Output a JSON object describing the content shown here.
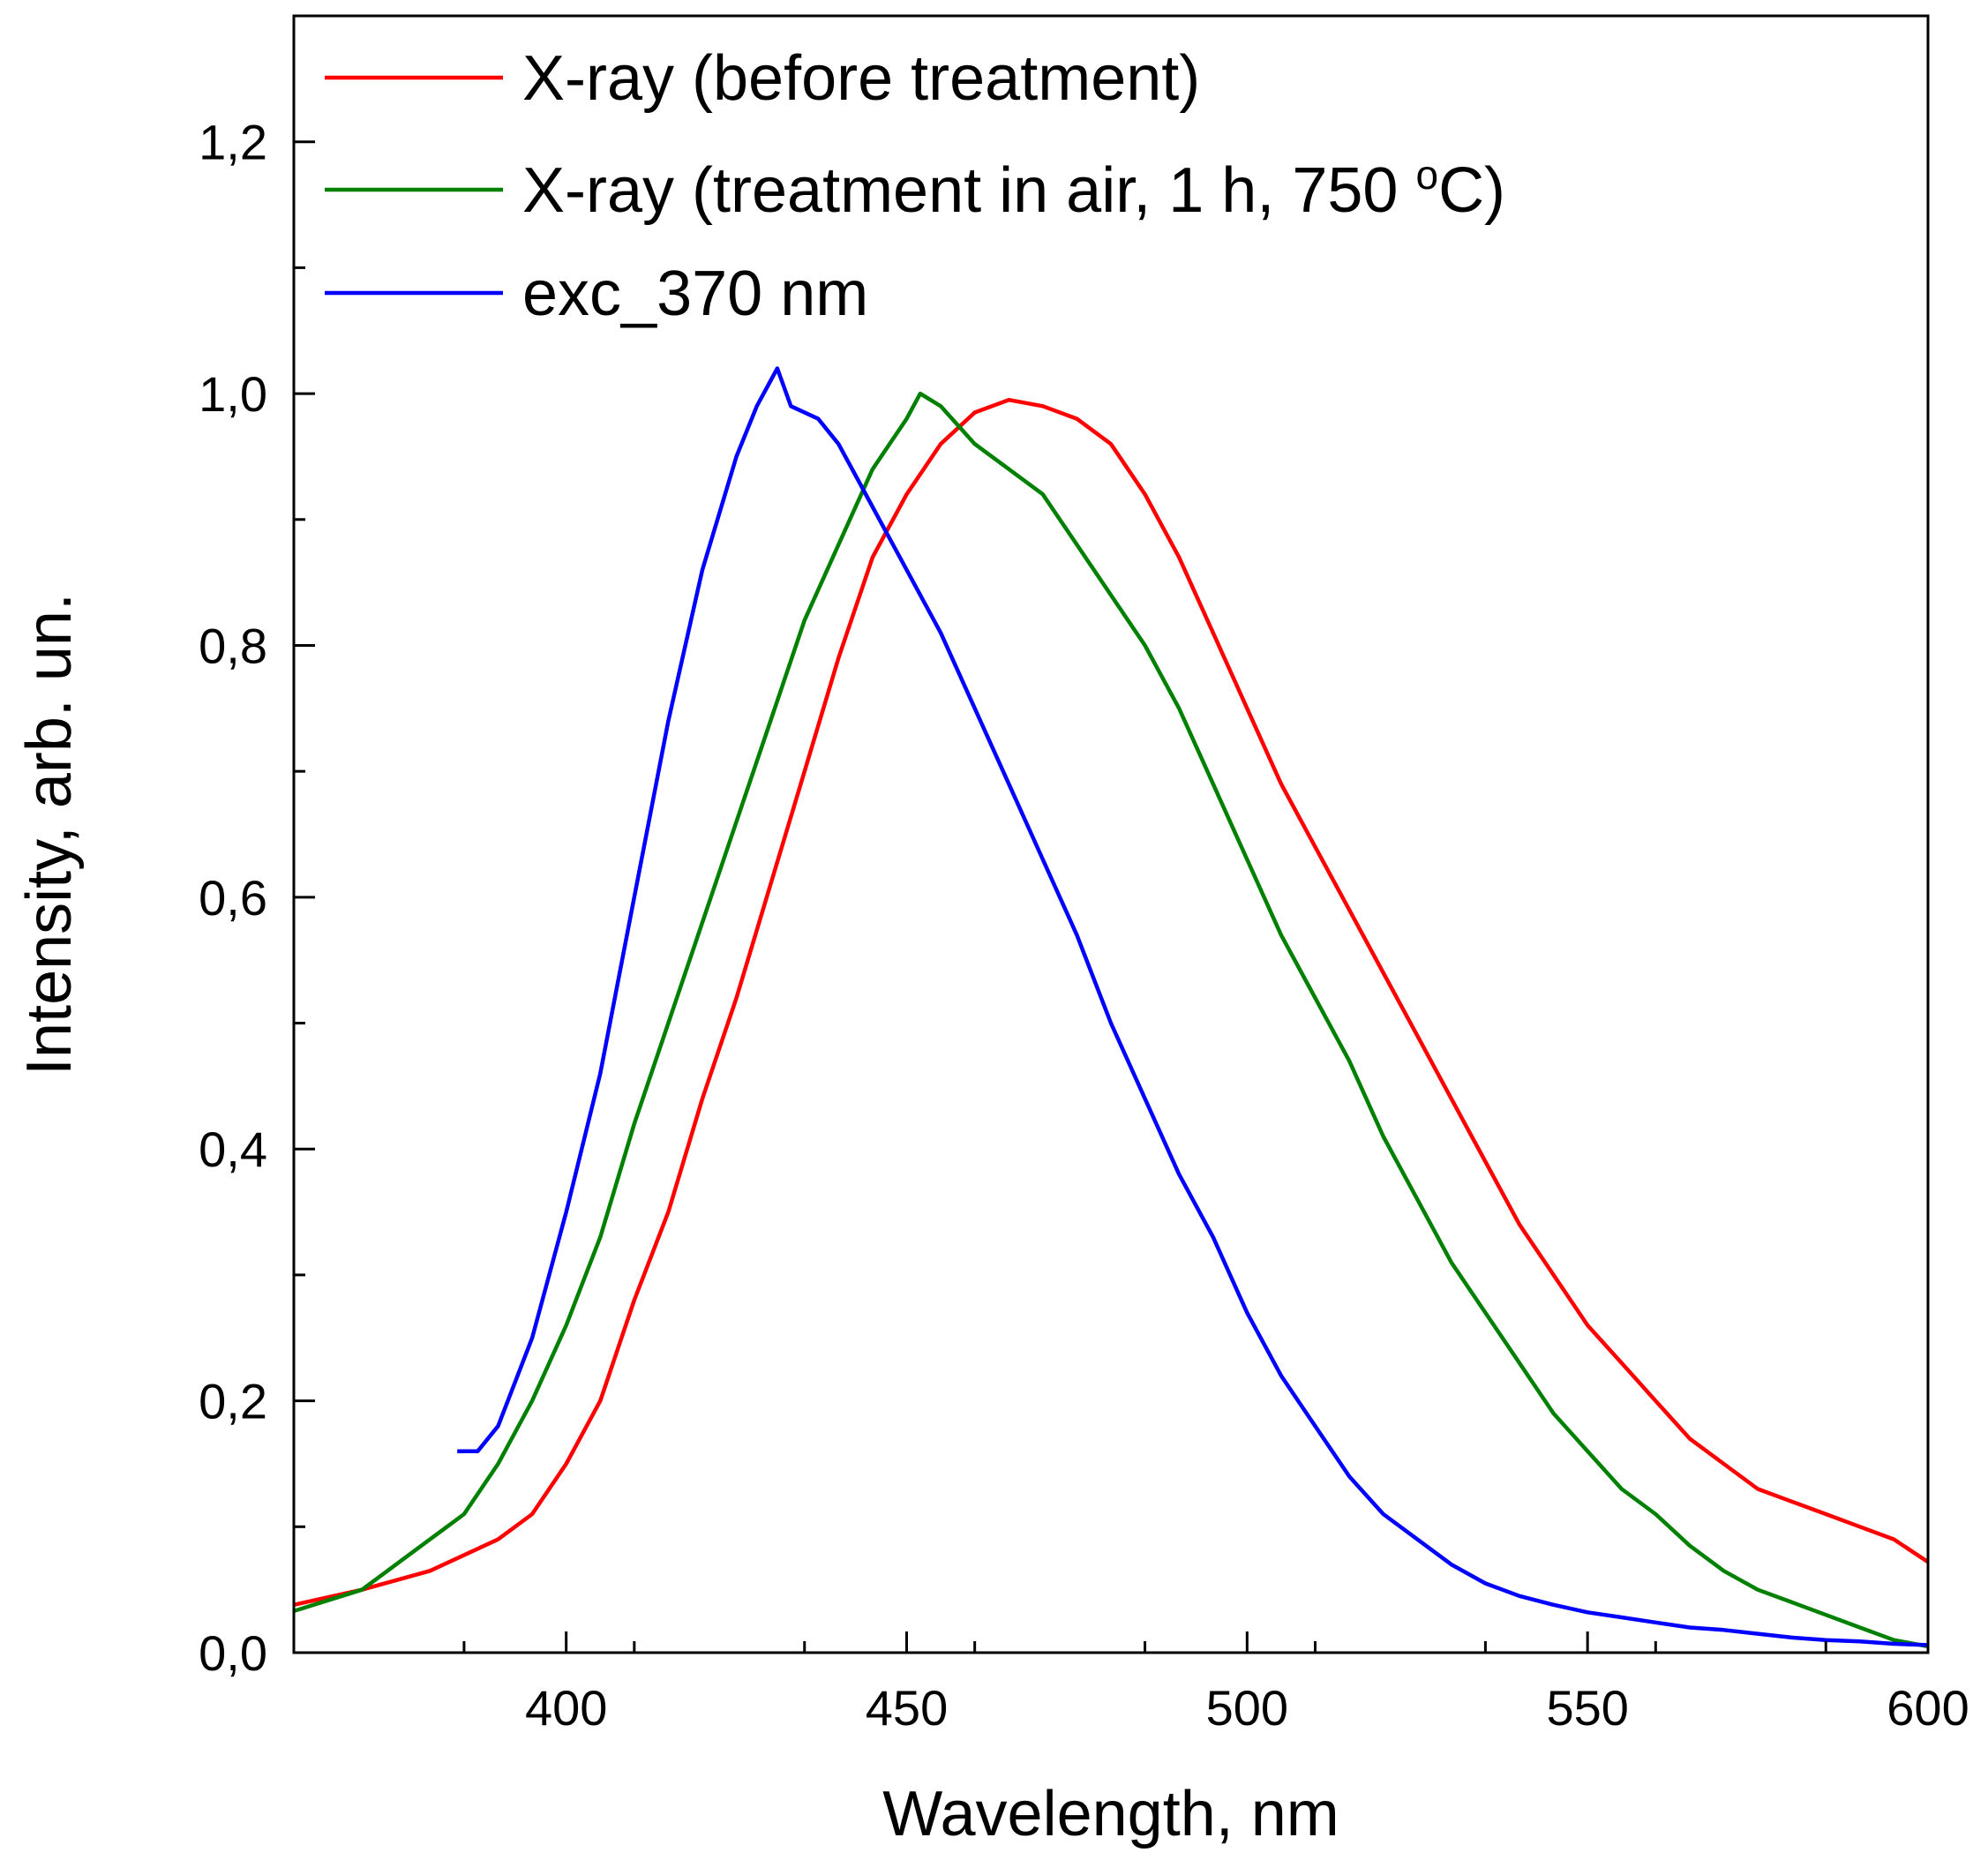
{
  "chart_data": {
    "type": "line",
    "title": "",
    "xlabel": "Wavelength, nm",
    "ylabel": "Intensity, arb. un.",
    "xlim": [
      360,
      600
    ],
    "ylim": [
      0,
      1.3
    ],
    "xticks": [
      400,
      450,
      500,
      550,
      600
    ],
    "xtick_labels": [
      "400",
      "450",
      "500",
      "550",
      "600"
    ],
    "xminor_step": 25,
    "yticks": [
      0,
      0.2,
      0.4,
      0.6,
      0.8,
      1.0,
      1.2
    ],
    "ytick_labels": [
      "0,0",
      "0,2",
      "0,4",
      "0,6",
      "0,8",
      "1,0",
      "1,2"
    ],
    "yminor_step": 0.1,
    "grid": false,
    "legend_position": "top-left",
    "series": [
      {
        "name": "X-ray (before treatment)",
        "color": "#ff0000",
        "points": [
          [
            360,
            0.038
          ],
          [
            370,
            0.05
          ],
          [
            380,
            0.065
          ],
          [
            390,
            0.09
          ],
          [
            395,
            0.11
          ],
          [
            400,
            0.15
          ],
          [
            405,
            0.2
          ],
          [
            410,
            0.28
          ],
          [
            415,
            0.35
          ],
          [
            420,
            0.44
          ],
          [
            425,
            0.52
          ],
          [
            430,
            0.61
          ],
          [
            435,
            0.7
          ],
          [
            440,
            0.79
          ],
          [
            445,
            0.87
          ],
          [
            450,
            0.92
          ],
          [
            455,
            0.96
          ],
          [
            460,
            0.985
          ],
          [
            465,
            0.995
          ],
          [
            470,
            0.99
          ],
          [
            475,
            0.98
          ],
          [
            480,
            0.96
          ],
          [
            485,
            0.92
          ],
          [
            490,
            0.87
          ],
          [
            495,
            0.81
          ],
          [
            500,
            0.75
          ],
          [
            505,
            0.69
          ],
          [
            510,
            0.64
          ],
          [
            515,
            0.59
          ],
          [
            520,
            0.54
          ],
          [
            525,
            0.49
          ],
          [
            530,
            0.44
          ],
          [
            535,
            0.39
          ],
          [
            540,
            0.34
          ],
          [
            545,
            0.3
          ],
          [
            550,
            0.26
          ],
          [
            555,
            0.23
          ],
          [
            560,
            0.2
          ],
          [
            565,
            0.17
          ],
          [
            570,
            0.15
          ],
          [
            575,
            0.13
          ],
          [
            580,
            0.12
          ],
          [
            585,
            0.11
          ],
          [
            590,
            0.1
          ],
          [
            595,
            0.09
          ],
          [
            600,
            0.072
          ]
        ]
      },
      {
        "name": "X-ray (treatment in air, 1 h, 750 °C)",
        "name_base": "X-ray (treatment in air, 1 h, 750 ",
        "name_sup": "o",
        "name_tail": "C)",
        "color": "#008000",
        "points": [
          [
            360,
            0.033
          ],
          [
            370,
            0.05
          ],
          [
            375,
            0.07
          ],
          [
            380,
            0.09
          ],
          [
            385,
            0.11
          ],
          [
            390,
            0.15
          ],
          [
            395,
            0.2
          ],
          [
            400,
            0.26
          ],
          [
            405,
            0.33
          ],
          [
            410,
            0.42
          ],
          [
            415,
            0.5
          ],
          [
            420,
            0.58
          ],
          [
            425,
            0.66
          ],
          [
            430,
            0.74
          ],
          [
            435,
            0.82
          ],
          [
            440,
            0.88
          ],
          [
            445,
            0.94
          ],
          [
            450,
            0.98
          ],
          [
            452,
            1.0
          ],
          [
            455,
            0.99
          ],
          [
            460,
            0.96
          ],
          [
            465,
            0.94
          ],
          [
            470,
            0.92
          ],
          [
            475,
            0.88
          ],
          [
            480,
            0.84
          ],
          [
            485,
            0.8
          ],
          [
            490,
            0.75
          ],
          [
            495,
            0.69
          ],
          [
            500,
            0.63
          ],
          [
            505,
            0.57
          ],
          [
            510,
            0.52
          ],
          [
            515,
            0.47
          ],
          [
            520,
            0.41
          ],
          [
            525,
            0.36
          ],
          [
            530,
            0.31
          ],
          [
            535,
            0.27
          ],
          [
            540,
            0.23
          ],
          [
            545,
            0.19
          ],
          [
            550,
            0.16
          ],
          [
            555,
            0.13
          ],
          [
            560,
            0.11
          ],
          [
            565,
            0.085
          ],
          [
            570,
            0.065
          ],
          [
            575,
            0.05
          ],
          [
            580,
            0.04
          ],
          [
            585,
            0.03
          ],
          [
            590,
            0.02
          ],
          [
            595,
            0.01
          ],
          [
            600,
            0.005
          ]
        ]
      },
      {
        "name": "exc_370 nm",
        "color": "#0000ff",
        "points": [
          [
            384,
            0.16
          ],
          [
            387,
            0.16
          ],
          [
            390,
            0.18
          ],
          [
            395,
            0.25
          ],
          [
            400,
            0.35
          ],
          [
            405,
            0.46
          ],
          [
            410,
            0.6
          ],
          [
            415,
            0.74
          ],
          [
            420,
            0.86
          ],
          [
            425,
            0.95
          ],
          [
            428,
            0.99
          ],
          [
            431,
            1.02
          ],
          [
            433,
            0.99
          ],
          [
            437,
            0.98
          ],
          [
            440,
            0.96
          ],
          [
            443,
            0.93
          ],
          [
            446,
            0.9
          ],
          [
            450,
            0.86
          ],
          [
            455,
            0.81
          ],
          [
            460,
            0.75
          ],
          [
            465,
            0.69
          ],
          [
            470,
            0.63
          ],
          [
            475,
            0.57
          ],
          [
            480,
            0.5
          ],
          [
            485,
            0.44
          ],
          [
            490,
            0.38
          ],
          [
            495,
            0.33
          ],
          [
            500,
            0.27
          ],
          [
            505,
            0.22
          ],
          [
            510,
            0.18
          ],
          [
            515,
            0.14
          ],
          [
            520,
            0.11
          ],
          [
            525,
            0.09
          ],
          [
            530,
            0.07
          ],
          [
            535,
            0.055
          ],
          [
            540,
            0.045
          ],
          [
            545,
            0.038
          ],
          [
            550,
            0.032
          ],
          [
            555,
            0.028
          ],
          [
            560,
            0.024
          ],
          [
            565,
            0.02
          ],
          [
            570,
            0.018
          ],
          [
            575,
            0.015
          ],
          [
            580,
            0.012
          ],
          [
            585,
            0.01
          ],
          [
            590,
            0.009
          ],
          [
            595,
            0.007
          ],
          [
            600,
            0.006
          ]
        ]
      }
    ]
  }
}
